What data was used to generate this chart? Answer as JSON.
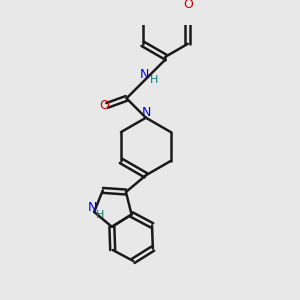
{
  "bg_color": "#e8e8e8",
  "bond_color": "#1a1a1a",
  "N_color": "#0000ee",
  "O_color": "#cc0000",
  "H_color": "#008080",
  "lw": 1.8,
  "figsize": [
    3.0,
    3.0
  ],
  "dpi": 100,
  "xlim": [
    0,
    10
  ],
  "ylim": [
    0,
    10
  ]
}
